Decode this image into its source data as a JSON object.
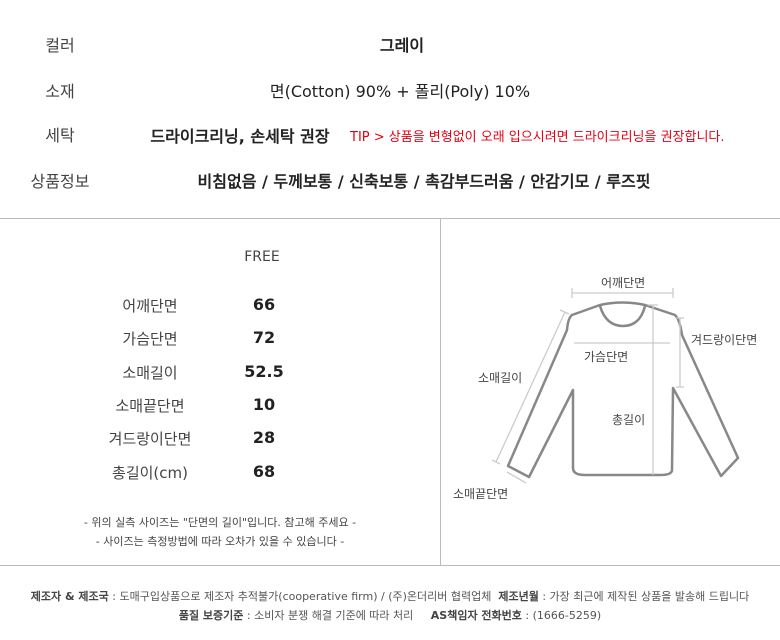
{
  "info": {
    "rows": [
      {
        "label": "컬러",
        "value": "그레이"
      },
      {
        "label": "소재",
        "value": "면(Cotton) 90% + 폴리(Poly) 10%"
      },
      {
        "label": "세탁",
        "value": "드라이크리닝, 손세탁 권장",
        "tip": "TIP > 상품을 변형없이 오래 입으시려면 드라이크리닝을 권장합니다."
      },
      {
        "label": "상품정보",
        "value": "비침없음 / 두께보통 / 신축보통 / 촉감부드러움 / 안감기모 / 루즈핏"
      }
    ],
    "tip_color": "#e60012"
  },
  "size": {
    "header": "FREE",
    "rows": [
      {
        "label": "어깨단면",
        "value": "66"
      },
      {
        "label": "가슴단면",
        "value": "72"
      },
      {
        "label": "소매길이",
        "value": "52.5"
      },
      {
        "label": "소매끝단면",
        "value": "10"
      },
      {
        "label": "겨드랑이단면",
        "value": "28"
      },
      {
        "label": "총길이(cm)",
        "value": "68"
      }
    ],
    "notes": [
      "- 위의 실측 사이즈는 \"단면의 길이\"입니다. 참고해 주세요 -",
      "- 사이즈는 측정방법에 따라 오차가 있을 수 있습니다 -"
    ]
  },
  "diagram": {
    "shoulder": "어깨단면",
    "chest": "가슴단면",
    "sleeve": "소매길이",
    "total": "총길이",
    "armhole": "겨드랑이단면",
    "cuff": "소매끝단면"
  },
  "footer": {
    "maker_label": "제조자 & 제조국",
    "maker_value": " : 도매구입상품으로 제조자 추적불가(cooperative firm) / (주)온더리버 협력업체",
    "date_label": "제조년월",
    "date_value": " : 가장 최근에 제작된 상품을 발송해 드립니다",
    "quality_label": "품질 보증기준",
    "quality_value": " : 소비자 분쟁 해결 기준에 따라 처리",
    "as_label": "AS책임자 전화번호",
    "as_value": " : (1666-5259)"
  }
}
